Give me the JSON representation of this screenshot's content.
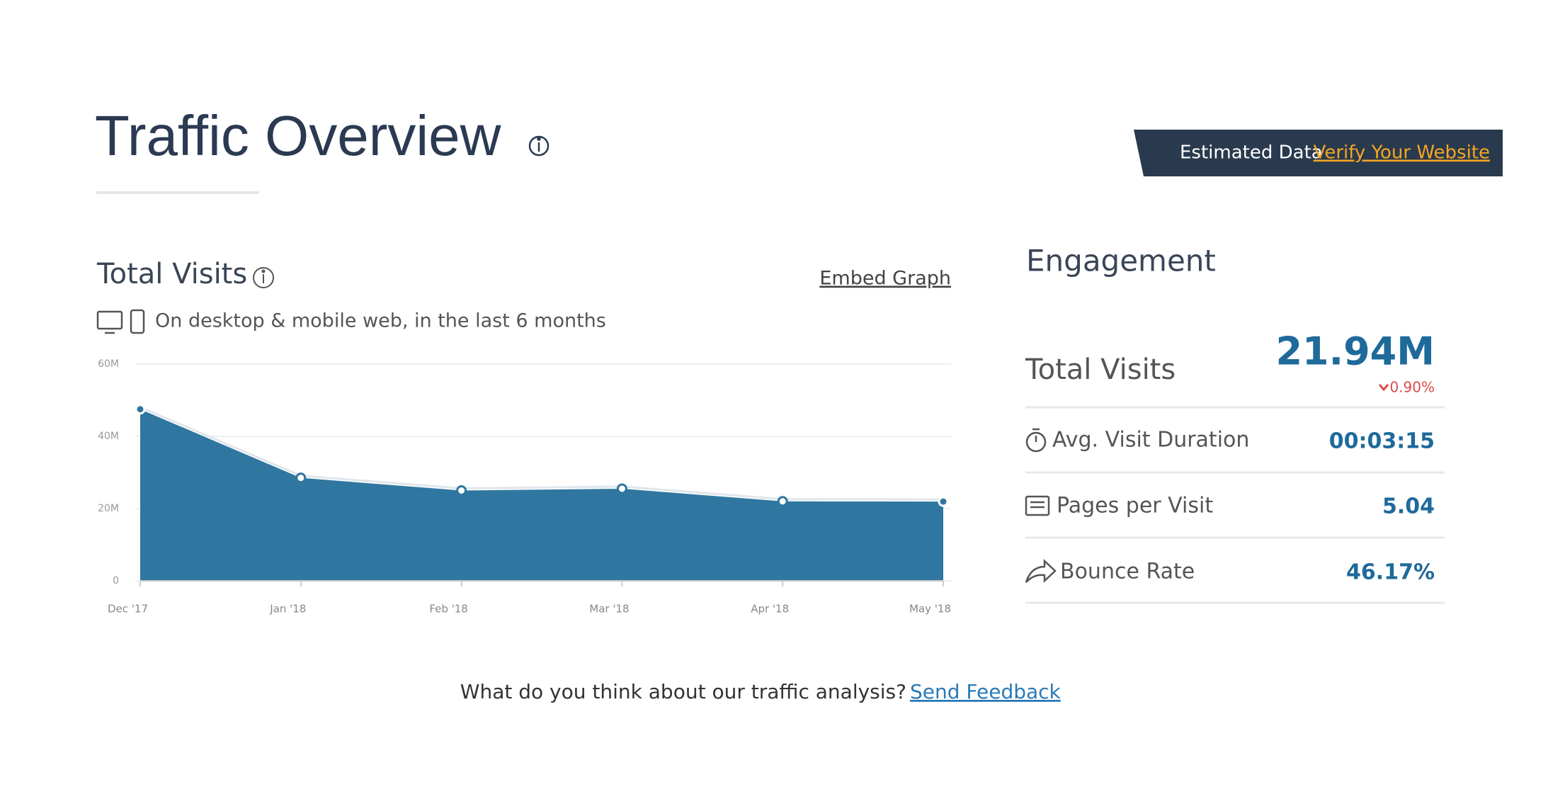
{
  "header": {
    "title": "Traffic Overview"
  },
  "badge": {
    "label": "Estimated Data",
    "link": "Verify Your Website"
  },
  "chart_data": {
    "type": "area",
    "title": "Total Visits",
    "action": "Embed Graph",
    "subtitle": "On desktop & mobile web, in the last 6 months",
    "categories": [
      "Dec '17",
      "Jan '18",
      "Feb '18",
      "Mar '18",
      "Apr '18",
      "May '18"
    ],
    "values": [
      47.5,
      28.5,
      25,
      25.5,
      22,
      21.94
    ],
    "color": "#2f77a0",
    "ylim": [
      0,
      60
    ],
    "yticks": [
      0,
      {
        "value": 20,
        "label": "20M"
      },
      {
        "value": 40,
        "label": "40M"
      },
      {
        "value": 60,
        "label": "60M"
      }
    ],
    "grid": true
  },
  "engagement": {
    "title": "Engagement",
    "total_label": "Total Visits",
    "total_value": "21.94M",
    "total_change": "0.90%",
    "metrics": [
      {
        "name": "Avg. Visit Duration",
        "value": "00:03:15"
      },
      {
        "name": "Pages per Visit",
        "value": "5.04"
      },
      {
        "name": "Bounce Rate",
        "value": "46.17%"
      }
    ]
  },
  "footer": {
    "question": "What do you think about our traffic analysis?",
    "link": "Send Feedback"
  }
}
